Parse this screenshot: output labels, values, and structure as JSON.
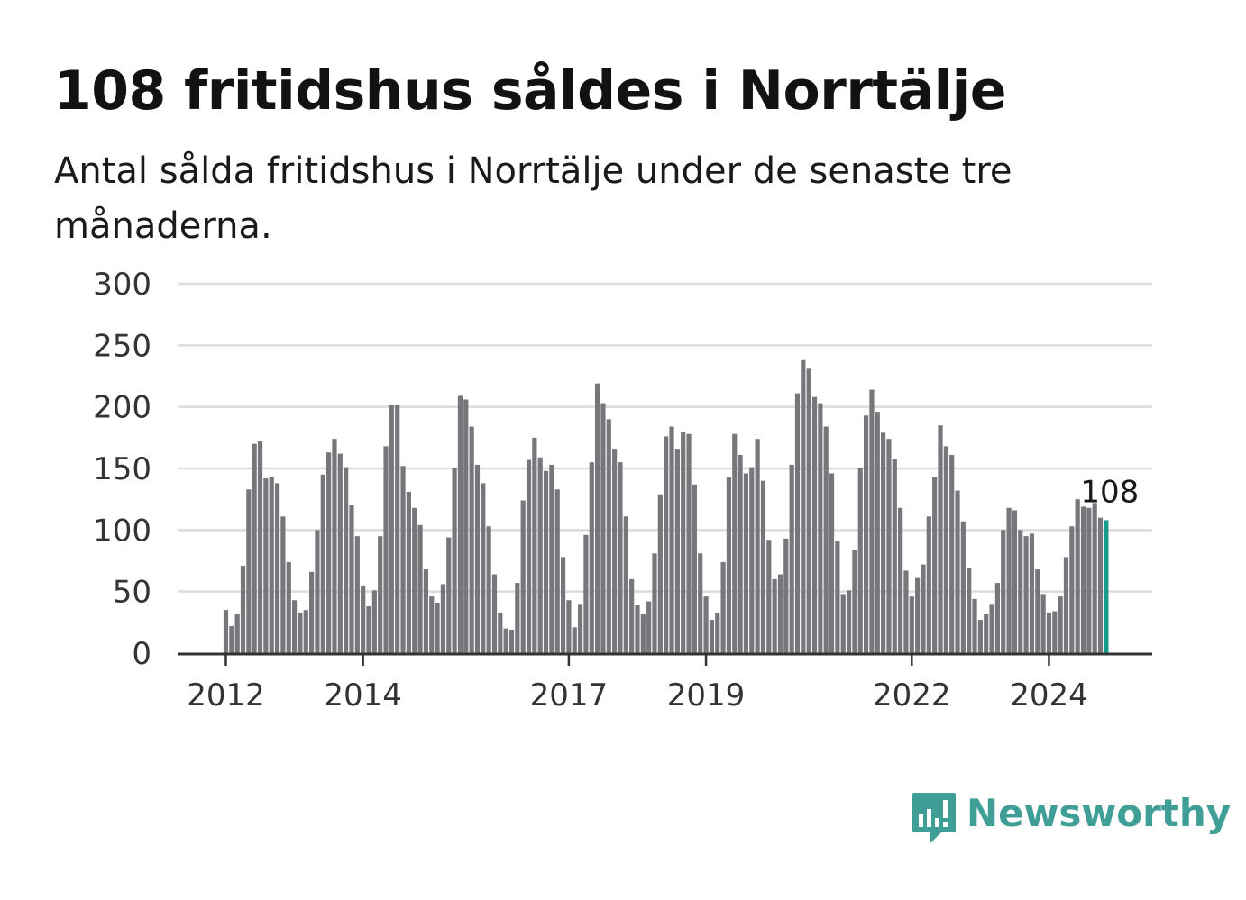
{
  "header": {
    "title": "108 fritidshus såldes i Norrtälje",
    "subtitle": "Antal sålda fritidshus i Norrtälje under de senaste tre månaderna."
  },
  "brand": {
    "name": "Newsworthy",
    "icon": "newsworthy-logo-icon",
    "color": "#3f9e96"
  },
  "colors": {
    "bar": "#76767b",
    "highlight": "#1a9a8c",
    "grid": "#dcdcdc",
    "axis": "#333333"
  },
  "chart_data": {
    "type": "bar",
    "x_start": "2012-01",
    "x_ticks": [
      "2012",
      "2014",
      "2017",
      "2019",
      "2022",
      "2024"
    ],
    "ylim": [
      0,
      300
    ],
    "y_ticks": [
      0,
      50,
      100,
      150,
      200,
      250,
      300
    ],
    "grid": true,
    "highlight_last": true,
    "last_value_label": "108",
    "values": [
      35,
      22,
      32,
      71,
      133,
      170,
      172,
      142,
      143,
      138,
      111,
      74,
      43,
      33,
      35,
      66,
      100,
      145,
      163,
      174,
      162,
      151,
      120,
      95,
      55,
      38,
      51,
      95,
      168,
      202,
      202,
      152,
      131,
      118,
      104,
      68,
      46,
      41,
      56,
      94,
      150,
      209,
      206,
      184,
      153,
      138,
      103,
      64,
      33,
      20,
      19,
      57,
      124,
      157,
      175,
      159,
      148,
      153,
      133,
      78,
      43,
      21,
      40,
      96,
      155,
      219,
      203,
      190,
      166,
      155,
      111,
      60,
      39,
      32,
      42,
      81,
      129,
      176,
      184,
      166,
      180,
      178,
      137,
      81,
      46,
      27,
      33,
      74,
      143,
      178,
      161,
      146,
      151,
      174,
      140,
      92,
      60,
      64,
      93,
      153,
      211,
      238,
      231,
      208,
      203,
      184,
      146,
      91,
      48,
      51,
      84,
      150,
      193,
      214,
      196,
      179,
      174,
      158,
      118,
      67,
      46,
      61,
      72,
      111,
      143,
      185,
      168,
      161,
      132,
      107,
      69,
      44,
      27,
      32,
      40,
      57,
      100,
      118,
      116,
      100,
      95,
      97,
      68,
      48,
      33,
      34,
      46,
      78,
      103,
      125,
      119,
      118,
      122,
      110,
      108
    ]
  }
}
